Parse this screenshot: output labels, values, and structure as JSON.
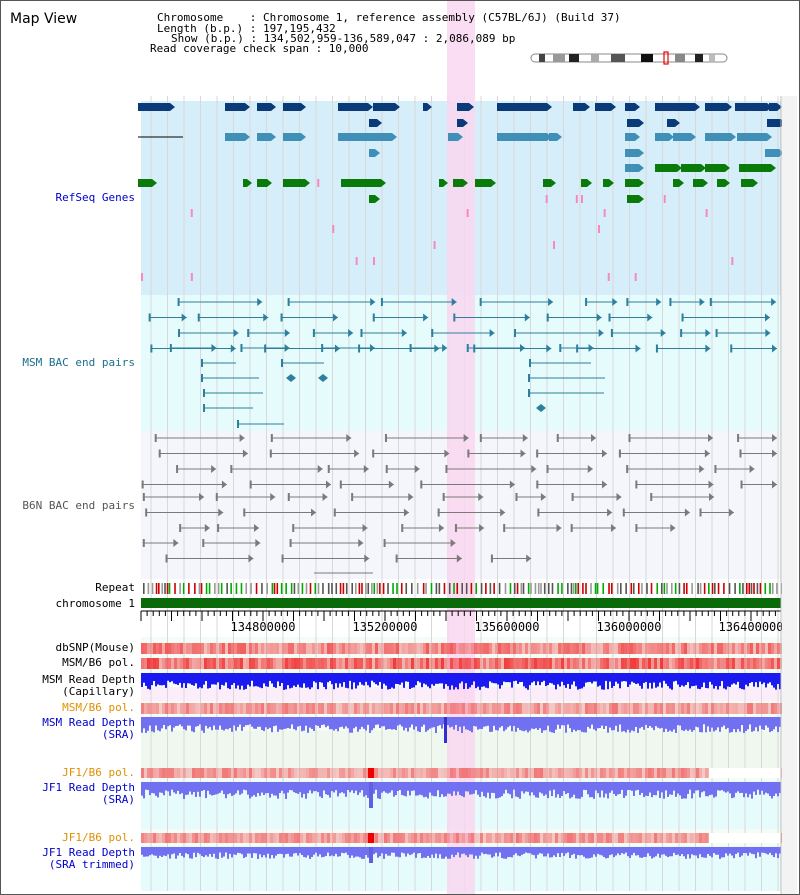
{
  "window": {
    "title": "Map View"
  },
  "info": {
    "chromosome": "Chromosome    : Chromosome 1, reference assembly (C57BL/6J) (Build 37)",
    "length": "Length (b.p.) : 197,195,432",
    "show": "Show (b.p.) : 134,502,959-136,589,047 : 2,086,089 bp",
    "coverage": "Read coverage check span : 10,000"
  },
  "tracks": {
    "refseq": "RefSeq Genes",
    "msm_bac": "MSM BAC end pairs",
    "b6n_bac": "B6N BAC end pairs",
    "repeat": "Repeat",
    "chromosome": "chromosome 1",
    "dbsnp": "dbSNP(Mouse)",
    "msm_b6_pol": "MSM/B6 pol.",
    "msm_depth_cap_1": "MSM Read Depth",
    "msm_depth_cap_2": "(Capillary)",
    "msm_b6_pol2": "MSM/B6 pol.",
    "msm_depth_sra_1": "MSM Read Depth",
    "msm_depth_sra_2": "(SRA)",
    "jf1_pol1": "JF1/B6 pol.",
    "jf1_depth_1": "JF1 Read Depth",
    "jf1_depth_2": "(SRA)",
    "jf1_pol2": "JF1/B6 pol.",
    "jf1_trim_1": "JF1 Read Depth",
    "jf1_trim_2": "(SRA trimmed)"
  },
  "axis": {
    "ticks": [
      "134800000",
      "135200000",
      "135600000",
      "136000000",
      "136400000"
    ]
  },
  "colors": {
    "refseq_bg": "#d6eefa",
    "msm_bg": "#e6fbfb",
    "b6n_bg": "#f4f6fb",
    "highlight": "#f9d7f0",
    "gene_dark": "#0a3a78",
    "gene_mid": "#3f8fb6",
    "gene_green": "#0a7a0a",
    "msm_feature": "#2e7f9e",
    "b6n_feature": "#7a7a7a",
    "depth_blue": "#1a1af0",
    "depth_sra": "#7070f0",
    "label_blue": "#0000cc",
    "label_orange": "#e09000"
  }
}
